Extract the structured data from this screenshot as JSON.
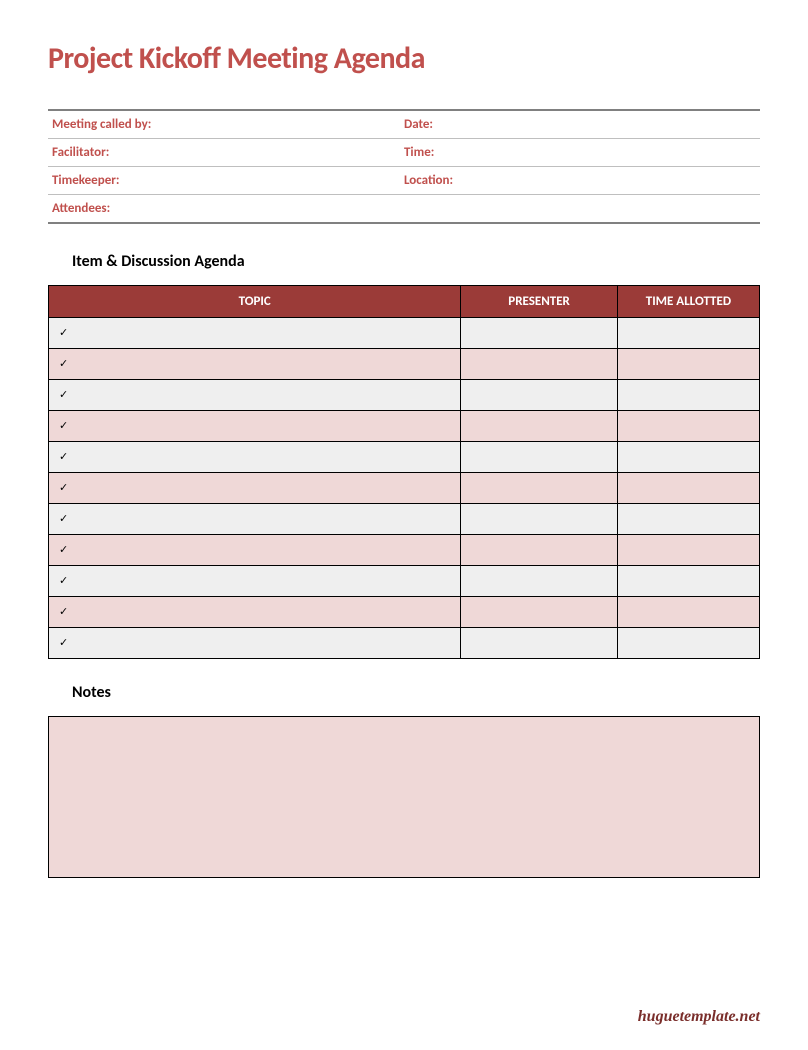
{
  "title": "Project Kickoff Meeting Agenda",
  "colors": {
    "accent": "#c0504d",
    "table_header_bg": "#9b3b38",
    "table_header_fg": "#ffffff",
    "row_odd_bg": "#efefef",
    "row_even_bg": "#efd8d7",
    "notes_bg": "#efd8d7",
    "border": "#000000",
    "info_divider": "#bfbfbf",
    "info_outer_border": "#808080",
    "footer_color": "#7a2e2b"
  },
  "info": {
    "rows": [
      {
        "left": "Meeting called by:",
        "right": "Date:"
      },
      {
        "left": "Facilitator:",
        "right": "Time:"
      },
      {
        "left": "Timekeeper:",
        "right": "Location:"
      },
      {
        "left": "Attendees:",
        "right": ""
      }
    ]
  },
  "agenda": {
    "heading": "Item & Discussion Agenda",
    "columns": [
      "TOPIC",
      "PRESENTER",
      "TIME ALLOTTED"
    ],
    "column_widths_pct": [
      58,
      22,
      20
    ],
    "row_count": 11,
    "check_glyph": "✓",
    "rows": [
      {
        "topic": "✓",
        "presenter": "",
        "time": ""
      },
      {
        "topic": "✓",
        "presenter": "",
        "time": ""
      },
      {
        "topic": "✓",
        "presenter": "",
        "time": ""
      },
      {
        "topic": "✓",
        "presenter": "",
        "time": ""
      },
      {
        "topic": "✓",
        "presenter": "",
        "time": ""
      },
      {
        "topic": "✓",
        "presenter": "",
        "time": ""
      },
      {
        "topic": "✓",
        "presenter": "",
        "time": ""
      },
      {
        "topic": "✓",
        "presenter": "",
        "time": ""
      },
      {
        "topic": "✓",
        "presenter": "",
        "time": ""
      },
      {
        "topic": "✓",
        "presenter": "",
        "time": ""
      },
      {
        "topic": "✓",
        "presenter": "",
        "time": ""
      }
    ]
  },
  "notes": {
    "heading": "Notes",
    "content": ""
  },
  "footer": "huguetemplate.net",
  "typography": {
    "title_fontsize": 30,
    "section_heading_fontsize": 16,
    "info_label_fontsize": 13,
    "table_header_fontsize": 13,
    "table_cell_fontsize": 12,
    "footer_fontsize": 16
  }
}
